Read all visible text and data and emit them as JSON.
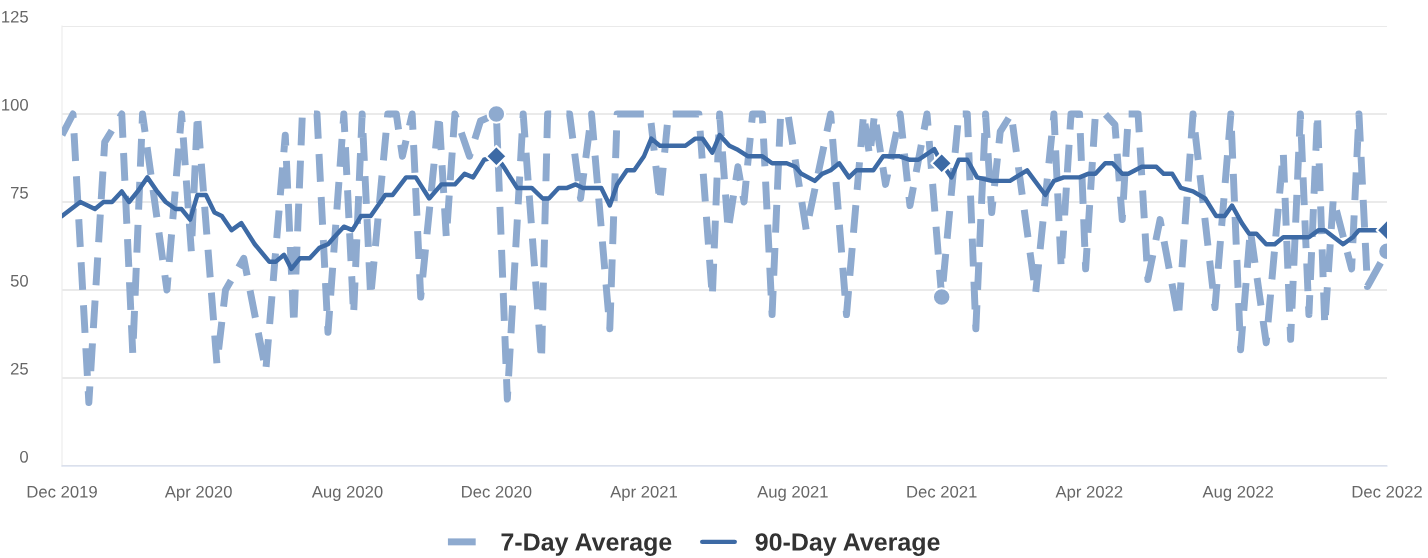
{
  "chart_data": {
    "type": "line",
    "xlim": [
      "2019-12-11",
      "2022-12-01"
    ],
    "xticks": [
      {
        "value": "2019-12-11",
        "label": "Dec 2019"
      },
      {
        "value": "2020-04-01",
        "label": "Apr 2020"
      },
      {
        "value": "2020-08-01",
        "label": "Aug 2020"
      },
      {
        "value": "2020-12-01",
        "label": "Dec 2020"
      },
      {
        "value": "2021-04-01",
        "label": "Apr 2021"
      },
      {
        "value": "2021-08-01",
        "label": "Aug 2021"
      },
      {
        "value": "2021-12-01",
        "label": "Dec 2021"
      },
      {
        "value": "2022-04-01",
        "label": "Apr 2022"
      },
      {
        "value": "2022-08-01",
        "label": "Aug 2022"
      },
      {
        "value": "2022-12-01",
        "label": "Dec 2022"
      }
    ],
    "ylim": [
      0,
      125
    ],
    "yticks": [
      0,
      25,
      50,
      75,
      100,
      125
    ],
    "grid": "y",
    "legend": "bottom",
    "series": [
      {
        "name": "7-Day Average",
        "color": "#8eaacf",
        "line_style": "dashed",
        "marker": "none",
        "x": [
          "2019-12-11",
          "2019-12-20",
          "2020-01-02",
          "2020-01-15",
          "2020-01-29",
          "2020-02-07",
          "2020-02-15",
          "2020-03-06",
          "2020-03-18",
          "2020-03-26",
          "2020-03-31",
          "2020-04-16",
          "2020-04-23",
          "2020-05-08",
          "2020-05-26",
          "2020-06-11",
          "2020-06-18",
          "2020-06-25",
          "2020-07-07",
          "2020-07-16",
          "2020-07-29",
          "2020-08-06",
          "2020-08-13",
          "2020-08-20",
          "2020-09-03",
          "2020-09-10",
          "2020-09-15",
          "2020-09-23",
          "2020-09-30",
          "2020-10-15",
          "2020-10-21",
          "2020-10-28",
          "2020-11-09",
          "2020-11-18",
          "2020-12-01",
          "2020-12-10",
          "2020-12-23",
          "2021-01-07",
          "2021-01-12",
          "2021-01-30",
          "2021-02-08",
          "2021-02-17",
          "2021-03-04",
          "2021-03-10",
          "2021-03-24",
          "2021-04-06",
          "2021-04-14",
          "2021-04-21",
          "2021-05-16",
          "2021-05-27",
          "2021-06-02",
          "2021-06-09",
          "2021-06-17",
          "2021-06-22",
          "2021-06-29",
          "2021-07-07",
          "2021-07-15",
          "2021-07-22",
          "2021-07-28",
          "2021-08-12",
          "2021-09-01",
          "2021-09-14",
          "2021-09-28",
          "2021-10-03",
          "2021-10-07",
          "2021-10-16",
          "2021-10-28",
          "2021-11-05",
          "2021-11-19",
          "2021-12-01",
          "2021-12-15",
          "2021-12-22",
          "2021-12-29",
          "2022-01-06",
          "2022-01-11",
          "2022-01-18",
          "2022-01-27",
          "2022-02-16",
          "2022-03-03",
          "2022-03-09",
          "2022-03-17",
          "2022-03-24",
          "2022-03-29",
          "2022-04-06",
          "2022-04-14",
          "2022-04-22",
          "2022-04-28",
          "2022-05-03",
          "2022-05-11",
          "2022-05-19",
          "2022-05-29",
          "2022-06-13",
          "2022-06-25",
          "2022-07-13",
          "2022-07-26",
          "2022-08-03",
          "2022-08-11",
          "2022-08-24",
          "2022-09-07",
          "2022-09-13",
          "2022-09-21",
          "2022-09-28",
          "2022-10-05",
          "2022-10-11",
          "2022-10-18",
          "2022-11-02",
          "2022-11-08",
          "2022-11-15",
          "2022-12-01"
        ],
        "values": [
          94,
          100,
          18,
          92,
          100,
          32,
          100,
          50,
          100,
          61,
          100,
          29,
          50,
          59,
          27,
          94,
          40,
          100,
          100,
          38,
          100,
          43,
          100,
          48,
          100,
          100,
          88,
          100,
          48,
          100,
          65,
          100,
          88,
          98,
          100,
          19,
          100,
          30,
          100,
          100,
          76,
          100,
          39,
          100,
          100,
          100,
          75,
          100,
          100,
          48,
          100,
          67,
          85,
          75,
          100,
          100,
          43,
          100,
          100,
          67,
          100,
          43,
          100,
          88,
          100,
          80,
          100,
          74,
          100,
          48,
          100,
          100,
          39,
          100,
          72,
          95,
          100,
          49,
          100,
          56,
          100,
          100,
          56,
          100,
          100,
          97,
          70,
          100,
          100,
          53,
          70,
          42,
          100,
          45,
          100,
          33,
          67,
          35,
          89,
          36,
          100,
          43,
          100,
          40,
          76,
          56,
          100,
          51,
          61
        ]
      },
      {
        "name": "90-Day Average",
        "color": "#3d6aa5",
        "line_style": "solid",
        "marker": "none",
        "x": [
          "2019-12-11",
          "2019-12-26",
          "2020-01-07",
          "2020-01-14",
          "2020-01-21",
          "2020-01-29",
          "2020-02-04",
          "2020-02-11",
          "2020-02-19",
          "2020-02-27",
          "2020-03-05",
          "2020-03-13",
          "2020-03-18",
          "2020-03-25",
          "2020-03-31",
          "2020-04-07",
          "2020-04-14",
          "2020-04-20",
          "2020-04-28",
          "2020-05-06",
          "2020-05-17",
          "2020-05-29",
          "2020-06-03",
          "2020-06-10",
          "2020-06-16",
          "2020-06-23",
          "2020-07-01",
          "2020-07-09",
          "2020-07-16",
          "2020-07-21",
          "2020-07-29",
          "2020-08-05",
          "2020-08-12",
          "2020-08-20",
          "2020-09-01",
          "2020-09-07",
          "2020-09-18",
          "2020-09-26",
          "2020-10-07",
          "2020-10-17",
          "2020-10-28",
          "2020-11-05",
          "2020-11-12",
          "2020-11-21",
          "2020-12-01",
          "2020-12-07",
          "2020-12-18",
          "2020-12-30",
          "2021-01-08",
          "2021-01-13",
          "2021-01-21",
          "2021-01-28",
          "2021-02-04",
          "2021-02-10",
          "2021-02-25",
          "2021-03-04",
          "2021-03-10",
          "2021-03-18",
          "2021-03-24",
          "2021-04-01",
          "2021-04-07",
          "2021-04-14",
          "2021-05-05",
          "2021-05-13",
          "2021-05-19",
          "2021-05-27",
          "2021-06-02",
          "2021-06-10",
          "2021-06-16",
          "2021-06-25",
          "2021-07-07",
          "2021-07-15",
          "2021-07-27",
          "2021-08-03",
          "2021-08-08",
          "2021-08-19",
          "2021-08-25",
          "2021-09-01",
          "2021-09-08",
          "2021-09-16",
          "2021-09-22",
          "2021-10-06",
          "2021-10-14",
          "2021-10-27",
          "2021-11-05",
          "2021-11-12",
          "2021-11-25",
          "2021-12-01",
          "2021-12-09",
          "2021-12-15",
          "2021-12-22",
          "2021-12-30",
          "2022-01-11",
          "2022-01-26",
          "2022-02-09",
          "2022-02-24",
          "2022-03-03",
          "2022-03-11",
          "2022-03-24",
          "2022-03-31",
          "2022-04-06",
          "2022-04-14",
          "2022-04-20",
          "2022-04-28",
          "2022-05-03",
          "2022-05-14",
          "2022-05-26",
          "2022-06-01",
          "2022-06-08",
          "2022-06-15",
          "2022-06-25",
          "2022-07-05",
          "2022-07-14",
          "2022-07-21",
          "2022-07-27",
          "2022-08-04",
          "2022-08-10",
          "2022-08-16",
          "2022-08-24",
          "2022-08-31",
          "2022-09-07",
          "2022-09-28",
          "2022-10-06",
          "2022-10-11",
          "2022-10-26",
          "2022-11-03",
          "2022-11-08",
          "2022-11-16",
          "2022-12-01"
        ],
        "values": [
          71,
          75,
          73,
          75,
          75,
          78,
          75,
          78,
          82,
          78,
          75,
          73,
          73,
          70,
          77,
          77,
          72,
          71,
          67,
          69,
          63,
          58,
          58,
          60,
          56,
          59,
          59,
          62,
          63,
          65,
          68,
          67,
          71,
          71,
          77,
          77,
          82,
          82,
          76,
          80,
          80,
          83,
          82,
          87,
          88,
          85,
          79,
          79,
          76,
          76,
          79,
          79,
          80,
          79,
          79,
          74,
          80,
          84,
          84,
          88,
          93,
          91,
          91,
          93,
          93,
          89,
          94,
          91,
          90,
          88,
          88,
          86,
          86,
          85,
          83,
          81,
          83,
          84,
          86,
          82,
          84,
          84,
          88,
          88,
          87,
          87,
          90,
          86,
          82,
          87,
          87,
          82,
          81,
          81,
          84,
          77,
          81,
          82,
          82,
          83,
          83,
          86,
          86,
          83,
          83,
          85,
          85,
          83,
          83,
          79,
          78,
          76,
          71,
          71,
          74,
          69,
          66,
          66,
          63,
          63,
          65,
          65,
          67,
          67,
          63,
          65,
          67,
          67,
          67
        ]
      },
      {
        "type": "scatter",
        "color": "#8eaacf",
        "marker": "circle",
        "x": [
          "2020-12-01",
          "2021-12-01",
          "2022-12-01"
        ],
        "values": [
          100,
          48,
          61
        ]
      },
      {
        "type": "scatter",
        "color": "#3d6aa5",
        "marker": "diamond",
        "x": [
          "2020-12-01",
          "2021-12-01",
          "2022-12-01"
        ],
        "values": [
          88,
          86,
          67
        ]
      }
    ]
  }
}
